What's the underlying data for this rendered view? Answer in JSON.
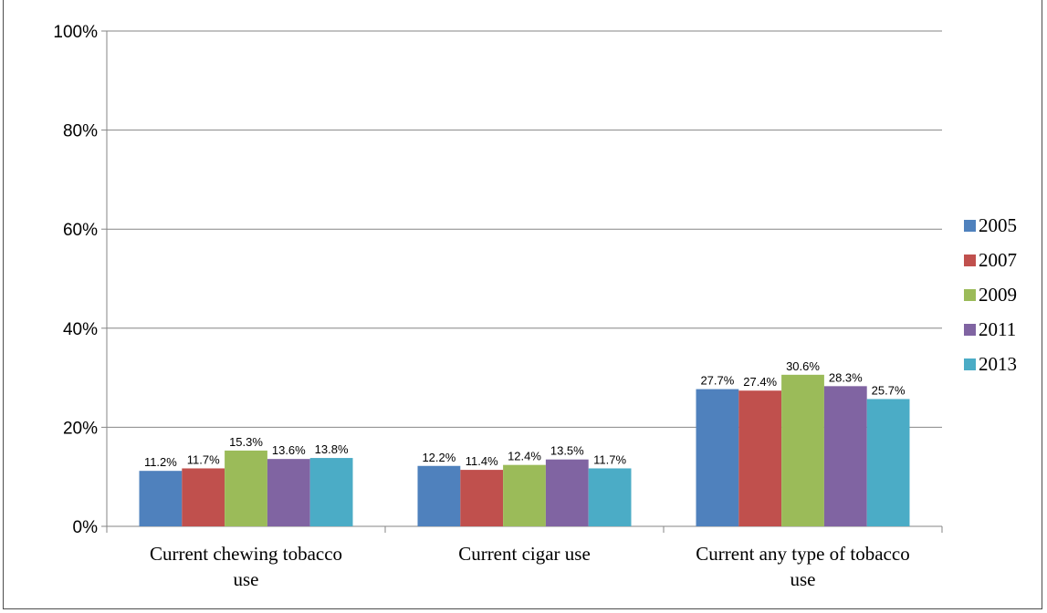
{
  "chart_data": {
    "type": "bar",
    "categories": [
      [
        "Current chewing tobacco",
        "use"
      ],
      [
        "Current cigar use"
      ],
      [
        "Current any type of tobacco",
        "use"
      ]
    ],
    "series": [
      {
        "name": "2005",
        "color": "#4f81bd",
        "values": [
          11.2,
          12.2,
          27.7
        ],
        "labels": [
          "11.2%",
          "12.2%",
          "27.7%"
        ]
      },
      {
        "name": "2007",
        "color": "#c0504d",
        "values": [
          11.7,
          11.4,
          27.4
        ],
        "labels": [
          "11.7%",
          "11.4%",
          "27.4%"
        ]
      },
      {
        "name": "2009",
        "color": "#9bbb59",
        "values": [
          15.3,
          12.4,
          30.6
        ],
        "labels": [
          "15.3%",
          "12.4%",
          "30.6%"
        ]
      },
      {
        "name": "2011",
        "color": "#8064a2",
        "values": [
          13.6,
          13.5,
          28.3
        ],
        "labels": [
          "13.6%",
          "13.5%",
          "28.3%"
        ]
      },
      {
        "name": "2013",
        "color": "#4bacc6",
        "values": [
          13.8,
          11.7,
          25.7
        ],
        "labels": [
          "13.8%",
          "11.7%",
          "25.7%"
        ]
      }
    ],
    "y_ticks": [
      {
        "value": 0,
        "label": "0%"
      },
      {
        "value": 20,
        "label": "20%"
      },
      {
        "value": 40,
        "label": "40%"
      },
      {
        "value": 60,
        "label": "60%"
      },
      {
        "value": 80,
        "label": "80%"
      },
      {
        "value": 100,
        "label": "100%"
      }
    ],
    "ylim": [
      0,
      100
    ],
    "grid": true,
    "legend": "right",
    "title": "",
    "xlabel": "",
    "ylabel": ""
  }
}
